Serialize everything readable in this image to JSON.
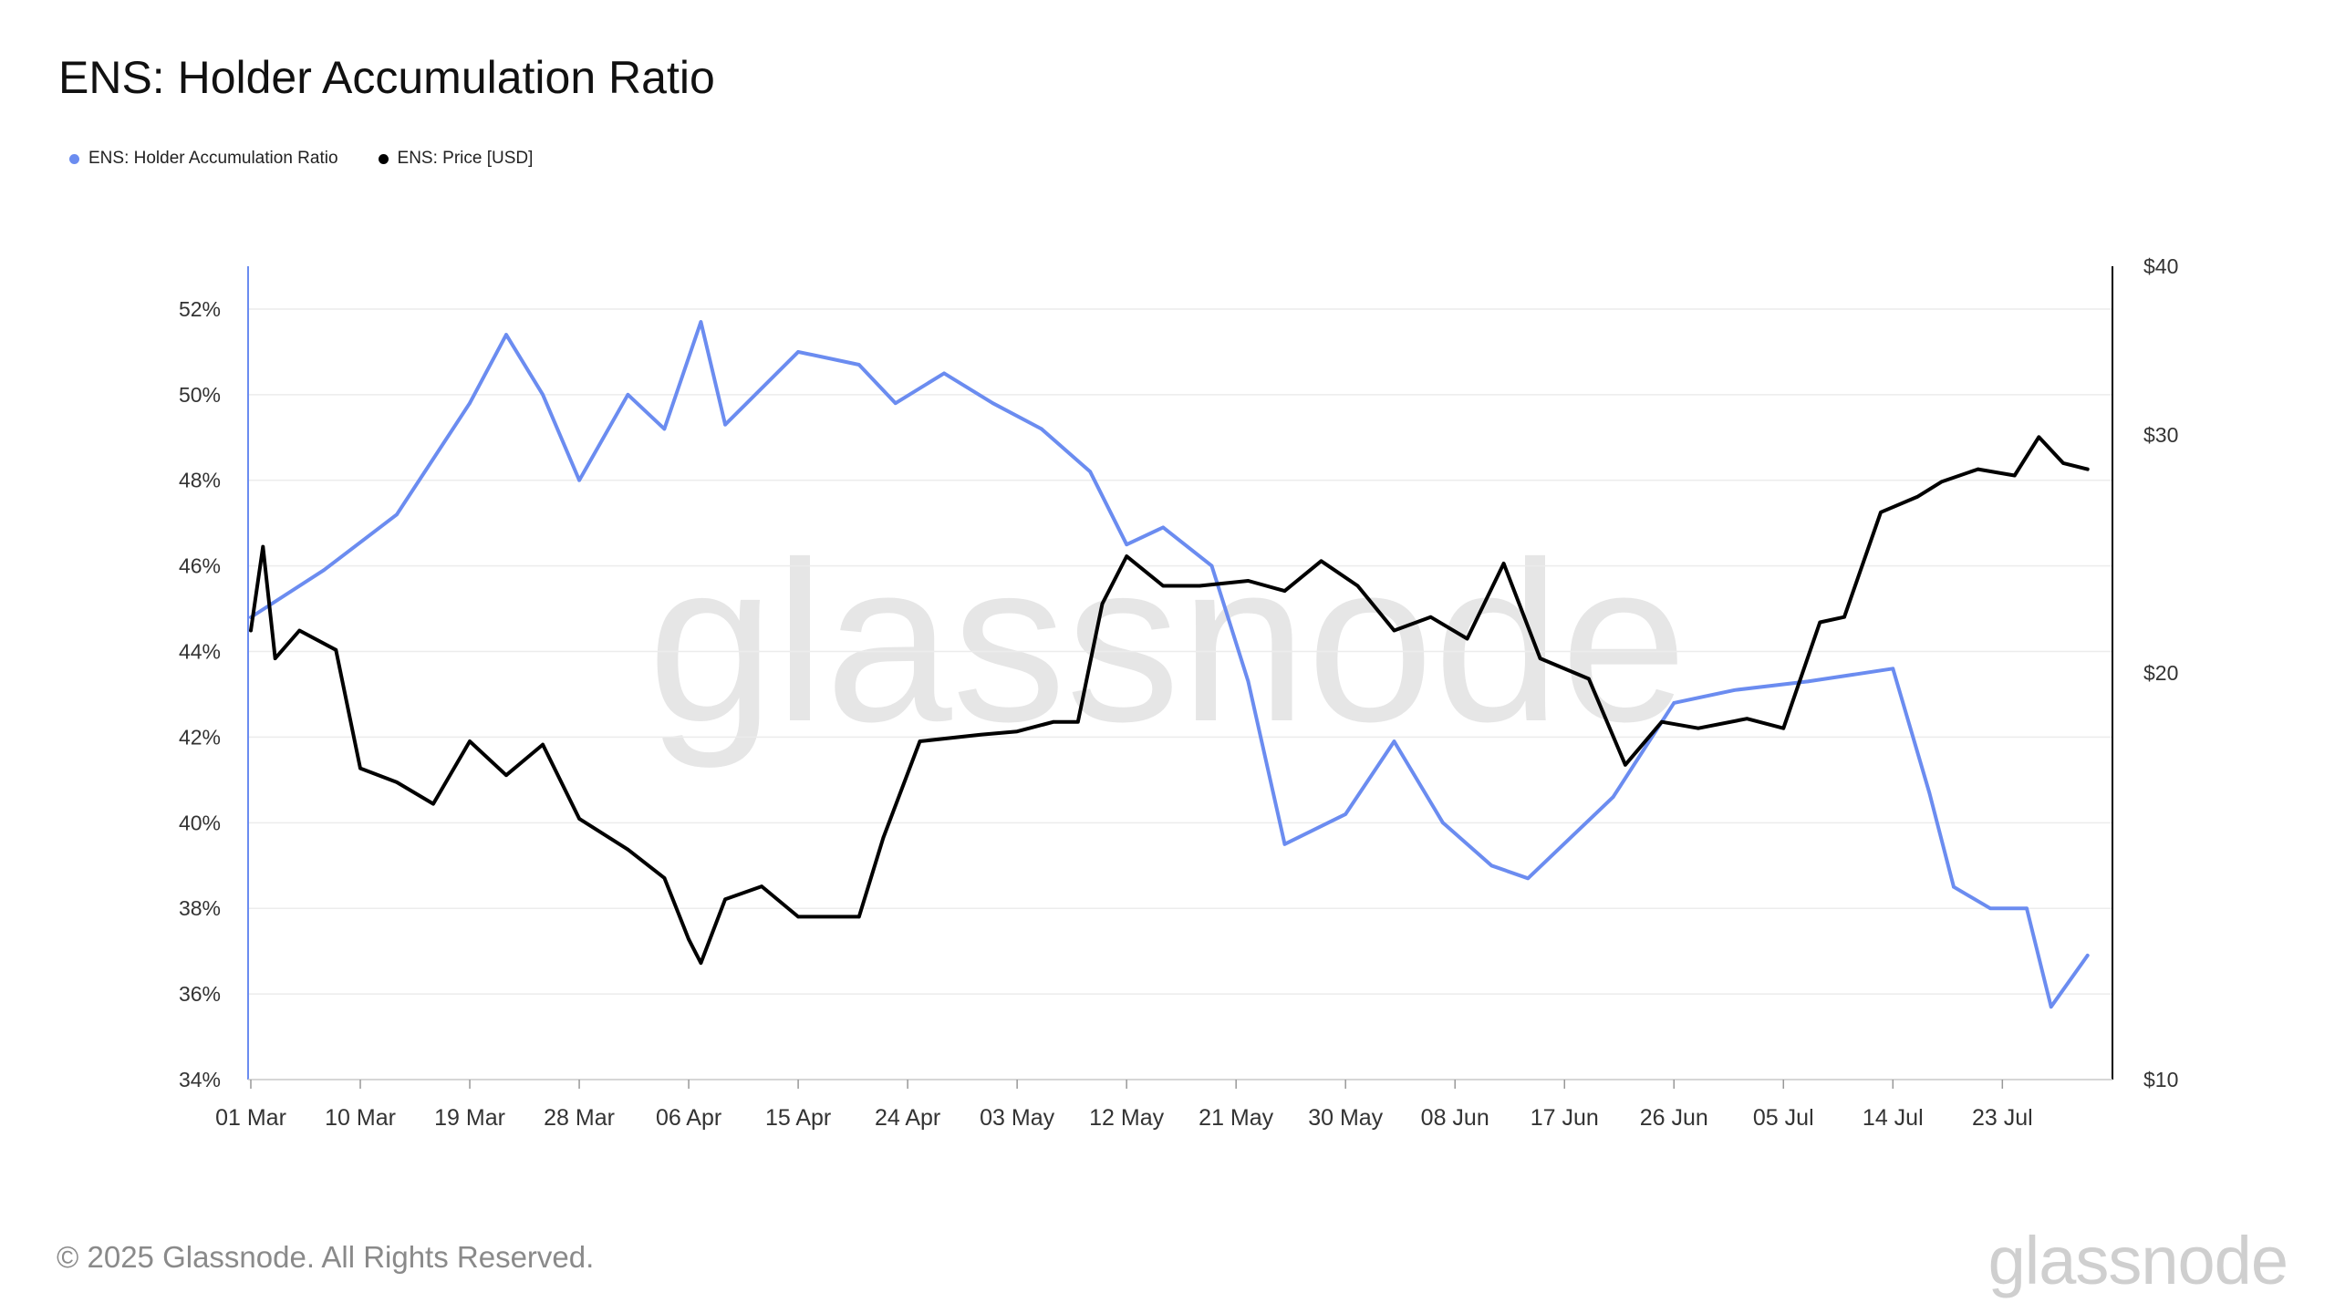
{
  "title": "ENS: Holder Accumulation Ratio",
  "legend": [
    {
      "label": "ENS: Holder Accumulation Ratio",
      "color": "#6b8cf0",
      "icon": "dot"
    },
    {
      "label": "ENS: Price [USD]",
      "color": "#000000",
      "icon": "dot"
    }
  ],
  "watermark": "glassnode",
  "footer": {
    "copyright": "© 2025 Glassnode. All Rights Reserved.",
    "logo": "glassnode"
  },
  "chart_data": {
    "type": "line",
    "title": "ENS: Holder Accumulation Ratio",
    "x_type": "date",
    "x_ticks": [
      "01 Mar",
      "10 Mar",
      "19 Mar",
      "28 Mar",
      "06 Apr",
      "15 Apr",
      "24 Apr",
      "03 May",
      "12 May",
      "21 May",
      "30 May",
      "08 Jun",
      "17 Jun",
      "26 Jun",
      "05 Jul",
      "14 Jul",
      "23 Jul"
    ],
    "x_range": [
      "2025-03-01",
      "2025-07-31"
    ],
    "y_left": {
      "label": "",
      "unit": "%",
      "range": [
        34,
        53
      ],
      "ticks": [
        34,
        36,
        38,
        40,
        42,
        44,
        46,
        48,
        50,
        52
      ],
      "tick_labels": [
        "34%",
        "36%",
        "38%",
        "40%",
        "42%",
        "44%",
        "46%",
        "48%",
        "50%",
        "52%"
      ]
    },
    "y_right": {
      "label": "",
      "unit": "USD",
      "scale": "log",
      "range": [
        10,
        40
      ],
      "ticks": [
        10,
        20,
        30,
        40
      ],
      "tick_labels": [
        "$10",
        "$20",
        "$30",
        "$40"
      ]
    },
    "grid": true,
    "legend_position": "top-left",
    "series": [
      {
        "name": "ENS: Holder Accumulation Ratio",
        "axis": "left",
        "color": "#6b8cf0",
        "x": [
          "2025-03-01",
          "2025-03-07",
          "2025-03-13",
          "2025-03-19",
          "2025-03-22",
          "2025-03-25",
          "2025-03-28",
          "2025-04-01",
          "2025-04-04",
          "2025-04-07",
          "2025-04-09",
          "2025-04-15",
          "2025-04-20",
          "2025-04-23",
          "2025-04-27",
          "2025-05-01",
          "2025-05-05",
          "2025-05-09",
          "2025-05-12",
          "2025-05-15",
          "2025-05-19",
          "2025-05-22",
          "2025-05-25",
          "2025-05-30",
          "2025-06-03",
          "2025-06-07",
          "2025-06-11",
          "2025-06-14",
          "2025-06-21",
          "2025-06-26",
          "2025-07-01",
          "2025-07-07",
          "2025-07-14",
          "2025-07-17",
          "2025-07-19",
          "2025-07-22",
          "2025-07-25",
          "2025-07-27",
          "2025-07-30"
        ],
        "values": [
          44.8,
          45.9,
          47.2,
          49.8,
          51.4,
          50.0,
          48.0,
          50.0,
          49.2,
          51.7,
          49.3,
          51.0,
          50.7,
          49.8,
          50.5,
          49.8,
          49.2,
          48.2,
          46.5,
          46.9,
          46.0,
          43.3,
          39.5,
          40.2,
          41.9,
          40.0,
          39.0,
          38.7,
          40.6,
          42.8,
          43.1,
          43.3,
          43.6,
          40.7,
          38.5,
          38.0,
          38.0,
          35.7,
          36.9
        ]
      },
      {
        "name": "ENS: Price [USD]",
        "axis": "right",
        "color": "#000000",
        "x": [
          "2025-03-01",
          "2025-03-02",
          "2025-03-03",
          "2025-03-05",
          "2025-03-08",
          "2025-03-10",
          "2025-03-13",
          "2025-03-16",
          "2025-03-19",
          "2025-03-22",
          "2025-03-25",
          "2025-03-28",
          "2025-04-01",
          "2025-04-04",
          "2025-04-06",
          "2025-04-07",
          "2025-04-09",
          "2025-04-12",
          "2025-04-15",
          "2025-04-20",
          "2025-04-22",
          "2025-04-25",
          "2025-04-30",
          "2025-05-03",
          "2025-05-06",
          "2025-05-08",
          "2025-05-10",
          "2025-05-12",
          "2025-05-15",
          "2025-05-18",
          "2025-05-22",
          "2025-05-25",
          "2025-05-28",
          "2025-05-31",
          "2025-06-03",
          "2025-06-06",
          "2025-06-09",
          "2025-06-12",
          "2025-06-15",
          "2025-06-19",
          "2025-06-22",
          "2025-06-25",
          "2025-06-28",
          "2025-07-02",
          "2025-07-05",
          "2025-07-08",
          "2025-07-10",
          "2025-07-13",
          "2025-07-16",
          "2025-07-18",
          "2025-07-21",
          "2025-07-24",
          "2025-07-26",
          "2025-07-28",
          "2025-07-30"
        ],
        "values": [
          21.5,
          24.8,
          20.5,
          21.5,
          20.8,
          17.0,
          16.6,
          16.0,
          17.8,
          16.8,
          17.7,
          15.6,
          14.8,
          14.1,
          12.7,
          12.2,
          13.6,
          13.9,
          13.2,
          13.2,
          15.1,
          17.8,
          18.0,
          18.1,
          18.4,
          18.4,
          22.5,
          24.4,
          23.2,
          23.2,
          23.4,
          23.0,
          24.2,
          23.2,
          21.5,
          22.0,
          21.2,
          24.1,
          20.5,
          19.8,
          17.1,
          18.4,
          18.2,
          18.5,
          18.2,
          21.8,
          22.0,
          26.3,
          27.0,
          27.7,
          28.3,
          28.0,
          29.9,
          28.6,
          28.3
        ]
      }
    ]
  }
}
